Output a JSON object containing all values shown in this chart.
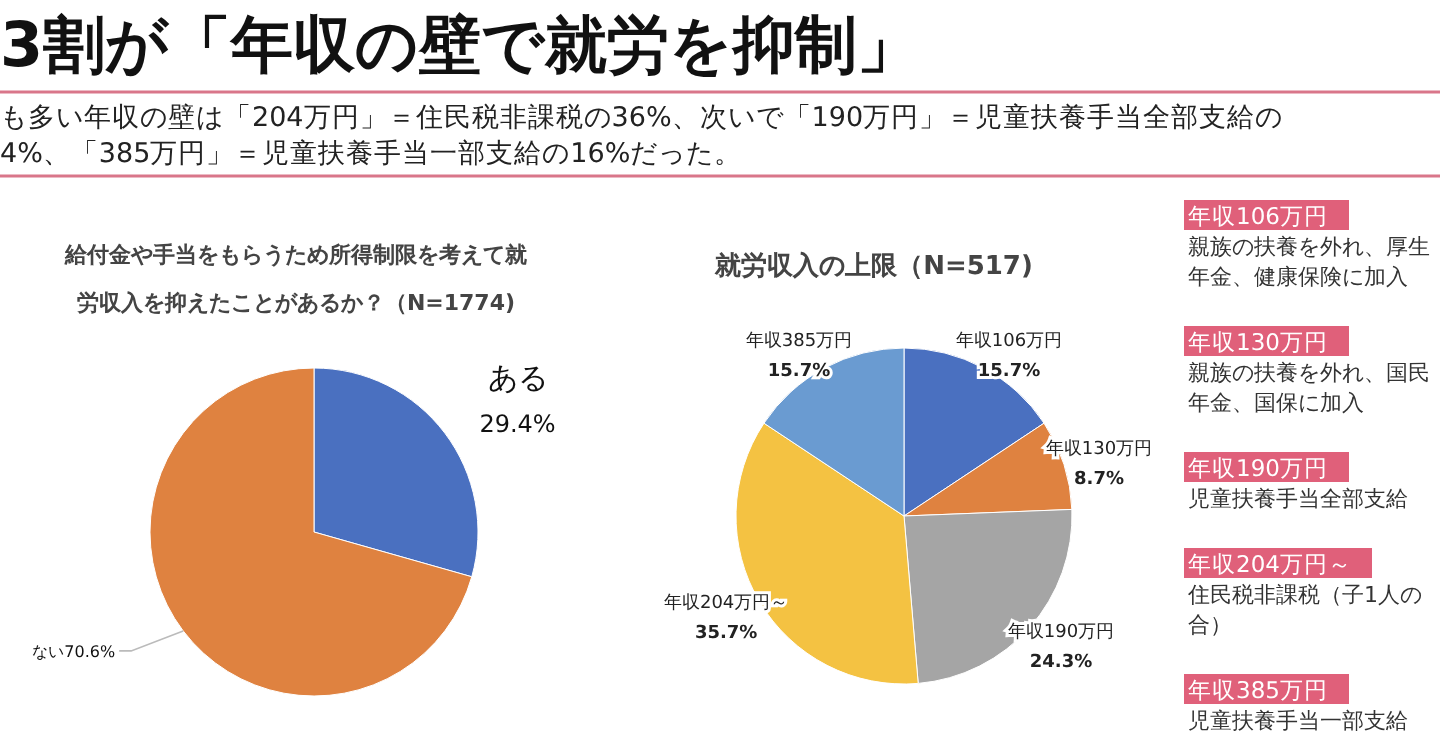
{
  "chart_data": [
    {
      "type": "other",
      "title": "3割が「年収の壁で就労を抑制」",
      "annotations": [
        "も多い年収の壁は「204万円」＝住民税非課税の36%、次いで「190万円」＝児童扶養手当全部支給の",
        "4%、「385万円」＝児童扶養手当一部支給の16%だった。"
      ]
    },
    {
      "type": "pie",
      "title": "給付金や手当をもらうため所得制限を考えて就労収入を抑えたことがあるか？（N=1774)",
      "categories": [
        "ある",
        "ない"
      ],
      "values": [
        29.4,
        70.6
      ],
      "value_labels": [
        "29.4%",
        "70.6%"
      ],
      "colors": [
        "#4a70c0",
        "#df8240"
      ]
    },
    {
      "type": "pie",
      "title": "就労収入の上限（N=517)",
      "categories": [
        "年収106万円",
        "年収130万円",
        "年収190万円",
        "年収204万円～",
        "年収385万円"
      ],
      "values": [
        15.7,
        8.7,
        24.3,
        35.7,
        15.7
      ],
      "value_labels": [
        "15.7%",
        "8.7%",
        "24.3%",
        "35.7%",
        "15.7%"
      ],
      "colors": [
        "#4a70c0",
        "#df8240",
        "#a5a5a5",
        "#f4c242",
        "#6a9bd1"
      ]
    },
    {
      "type": "other",
      "annotations": [
        "年収106万円",
        "親族の扶養を外れ、厚生年金、健康保険に加入",
        "年収130万円",
        "親族の扶養を外れ、国民年金、国保に加入",
        "年収190万円",
        "児童扶養手当全部支給",
        "年収204万円～",
        "住民税非課税（子1人の合）",
        "年収385万円",
        "児童扶養手当一部支給"
      ]
    }
  ]
}
